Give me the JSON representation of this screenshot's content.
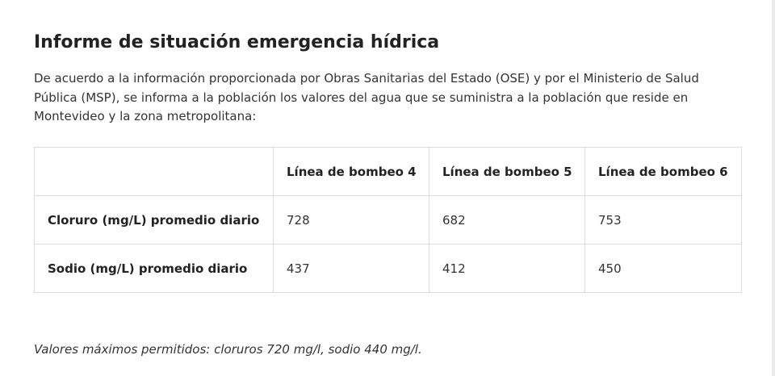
{
  "report": {
    "title": "Informe de situación emergencia hídrica",
    "intro": "De acuerdo a la información proporcionada por Obras Sanitarias del Estado (OSE) y por el Ministerio de Salud Pública (MSP), se informa a la población los valores del agua que se suministra a la población que reside en Montevideo y la zona metropolitana:",
    "table": {
      "columns": [
        "",
        "Línea de bombeo 4",
        "Línea de bombeo 5",
        "Línea de bombeo 6"
      ],
      "rows": [
        {
          "label": "Cloruro (mg/L) promedio diario",
          "values": [
            "728",
            "682",
            "753"
          ]
        },
        {
          "label": "Sodio (mg/L) promedio diario",
          "values": [
            "437",
            "412",
            "450"
          ]
        }
      ]
    },
    "note": "Valores máximos permitidos: cloruros 720 mg/l, sodio 440 mg/l."
  }
}
